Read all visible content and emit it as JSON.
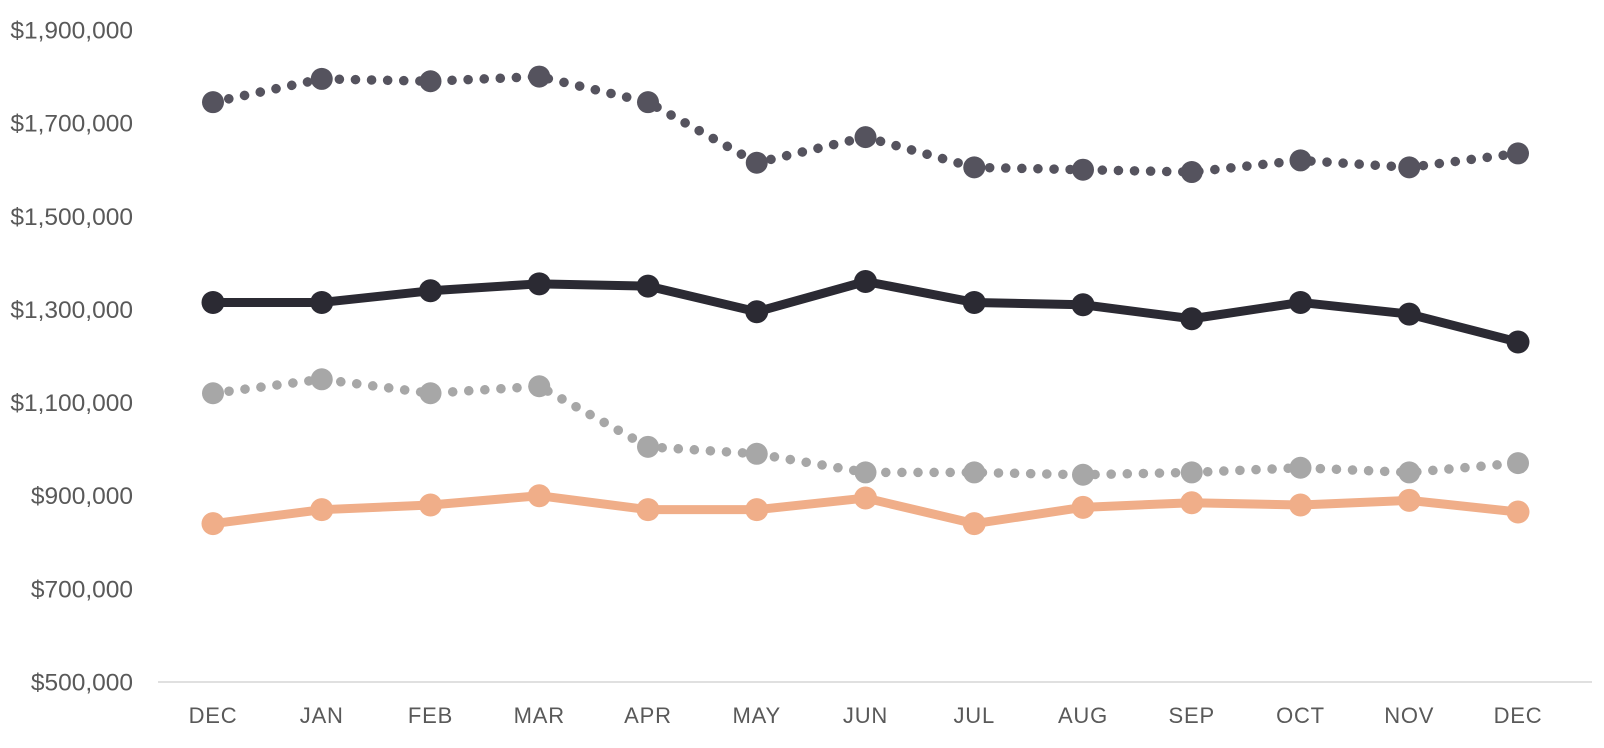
{
  "chart_data": {
    "type": "line",
    "title": "",
    "xlabel": "",
    "ylabel": "",
    "categories": [
      "DEC",
      "JAN",
      "FEB",
      "MAR",
      "APR",
      "MAY",
      "JUN",
      "JUL",
      "AUG",
      "SEP",
      "OCT",
      "NOV",
      "DEC"
    ],
    "y_ticks": [
      "$1,900,000",
      "$1,700,000",
      "$1,500,000",
      "$1,300,000",
      "$1,100,000",
      "$900,000",
      "$700,000",
      "$500,000"
    ],
    "ylim": [
      500000,
      1900000
    ],
    "grid": false,
    "legend": "none",
    "axis_color": "#d6d6d6",
    "label_color": "#595959",
    "series": [
      {
        "name": "upper-dark-dotted",
        "style": "dotted",
        "color": "#55535e",
        "values": [
          1745000,
          1795000,
          1790000,
          1800000,
          1745000,
          1615000,
          1670000,
          1605000,
          1600000,
          1595000,
          1620000,
          1605000,
          1635000
        ]
      },
      {
        "name": "black-solid",
        "style": "solid",
        "color": "#2b2a33",
        "values": [
          1315000,
          1315000,
          1340000,
          1355000,
          1350000,
          1295000,
          1360000,
          1315000,
          1310000,
          1280000,
          1315000,
          1290000,
          1230000
        ]
      },
      {
        "name": "gray-dotted",
        "style": "dotted",
        "color": "#a7a7a7",
        "values": [
          1120000,
          1150000,
          1120000,
          1135000,
          1005000,
          990000,
          950000,
          950000,
          945000,
          950000,
          960000,
          950000,
          970000
        ]
      },
      {
        "name": "salmon-solid",
        "style": "solid",
        "color": "#f0ae89",
        "values": [
          840000,
          870000,
          880000,
          900000,
          870000,
          870000,
          895000,
          840000,
          875000,
          885000,
          880000,
          890000,
          865000
        ]
      }
    ]
  }
}
